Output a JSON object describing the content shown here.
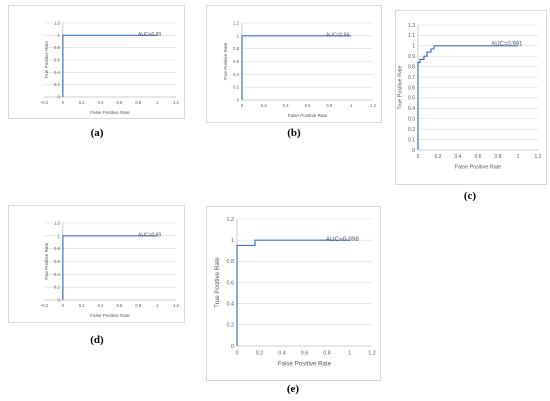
{
  "colors": {
    "line": "#4472c4",
    "grid": "#d9d9d9",
    "axis": "#bfbfbf",
    "text": "#595959"
  },
  "chart_data": [
    {
      "id": "a",
      "caption": "(a)",
      "type": "line",
      "xlabel": "False Positive Rate",
      "ylabel": "True Positive Rate",
      "xlim": [
        -0.2,
        1.2
      ],
      "ylim": [
        0,
        1.2
      ],
      "xticks": [
        -0.2,
        0,
        0.2,
        0.4,
        0.6,
        0.8,
        1,
        1.2
      ],
      "xtick_labels": [
        "−0.2",
        "0",
        "0.2",
        "0.4",
        "0.6",
        "0.8",
        "1",
        "1.2"
      ],
      "yticks": [
        0,
        0.2,
        0.4,
        0.6,
        0.8,
        1,
        1.2
      ],
      "ytick_labels": [
        "0",
        "0.2",
        "0.4",
        "0.6",
        "0.8",
        "1",
        "1.2"
      ],
      "grid": "horizontal",
      "annotation": "AUC=0.99",
      "series": [
        {
          "x": [
            0,
            0,
            1
          ],
          "y": [
            0,
            1,
            1
          ]
        }
      ]
    },
    {
      "id": "b",
      "caption": "(b)",
      "type": "line",
      "xlabel": "False Positive Rate",
      "ylabel": "True Positive Rate",
      "xlim": [
        0,
        1.2
      ],
      "ylim": [
        0,
        1.2
      ],
      "xticks": [
        0,
        0.2,
        0.4,
        0.6,
        0.8,
        1,
        1.2
      ],
      "xtick_labels": [
        "0",
        "0.2",
        "0.4",
        "0.6",
        "0.8",
        "1",
        "1.2"
      ],
      "yticks": [
        0,
        0.2,
        0.4,
        0.6,
        0.8,
        1,
        1.2
      ],
      "ytick_labels": [
        "0",
        "0.2",
        "0.4",
        "0.6",
        "0.8",
        "1",
        "1.2"
      ],
      "grid": "horizontal",
      "annotation": "AUC=0.99",
      "series": [
        {
          "x": [
            0,
            0,
            1
          ],
          "y": [
            0,
            1,
            1
          ]
        }
      ]
    },
    {
      "id": "c",
      "caption": "(c)",
      "type": "line",
      "xlabel": "False Positive Rate",
      "ylabel": "True Positive Rate",
      "xlim": [
        0,
        1.2
      ],
      "ylim": [
        0,
        1.2
      ],
      "xticks": [
        0,
        0.2,
        0.4,
        0.6,
        0.8,
        1,
        1.2
      ],
      "xtick_labels": [
        "0",
        "0.2",
        "0.4",
        "0.6",
        "0.8",
        "1",
        "1.2"
      ],
      "yticks": [
        0,
        0.1,
        0.2,
        0.3,
        0.4,
        0.5,
        0.6,
        0.7,
        0.8,
        0.9,
        1,
        1.1,
        1.2
      ],
      "ytick_labels": [
        "0",
        "0.1",
        "0.2",
        "0.3",
        "0.4",
        "0.5",
        "0.6",
        "0.7",
        "0.8",
        "0.9",
        "1",
        "1.1",
        "1.2"
      ],
      "grid": "horizontal",
      "annotation": "AUC=0.991",
      "series": [
        {
          "x": [
            0,
            0,
            0.02,
            0.02,
            0.06,
            0.06,
            0.09,
            0.09,
            0.13,
            0.13,
            0.16,
            0.16,
            1
          ],
          "y": [
            0,
            0.84,
            0.84,
            0.87,
            0.87,
            0.9,
            0.9,
            0.94,
            0.94,
            0.97,
            0.97,
            1,
            1
          ]
        }
      ]
    },
    {
      "id": "d",
      "caption": "(d)",
      "type": "line",
      "xlabel": "False Positive Rate",
      "ylabel": "True Positive Rate",
      "xlim": [
        -0.2,
        1.2
      ],
      "ylim": [
        0,
        1.2
      ],
      "xticks": [
        -0.2,
        0,
        0.2,
        0.4,
        0.6,
        0.8,
        1,
        1.2
      ],
      "xtick_labels": [
        "−0.2",
        "0",
        "0.2",
        "0.4",
        "0.6",
        "0.8",
        "1",
        "1.2"
      ],
      "yticks": [
        0,
        0.2,
        0.4,
        0.6,
        0.8,
        1,
        1.2
      ],
      "ytick_labels": [
        "0",
        "0.2",
        "0.4",
        "0.6",
        "0.8",
        "1",
        "1.2"
      ],
      "grid": "horizontal",
      "annotation": "AUC=0.99",
      "series": [
        {
          "x": [
            0,
            0,
            1
          ],
          "y": [
            0,
            1,
            1
          ]
        }
      ]
    },
    {
      "id": "e",
      "caption": "(e)",
      "type": "line",
      "xlabel": "False Positive Rate",
      "ylabel": "True Positive Rate",
      "xlim": [
        0,
        1.2
      ],
      "ylim": [
        0,
        1.2
      ],
      "xticks": [
        0,
        0.2,
        0.4,
        0.6,
        0.8,
        1,
        1.2
      ],
      "xtick_labels": [
        "0",
        "0.2",
        "0.4",
        "0.6",
        "0.8",
        "1",
        "1.2"
      ],
      "yticks": [
        0,
        0.2,
        0.4,
        0.6,
        0.8,
        1,
        1.2
      ],
      "ytick_labels": [
        "0",
        "0.2",
        "0.4",
        "0.6",
        "0.8",
        "1",
        "1.2"
      ],
      "grid": "horizontal",
      "annotation": "AUC=0.998",
      "series": [
        {
          "x": [
            0,
            0,
            0.16,
            0.16,
            1
          ],
          "y": [
            0,
            0.95,
            0.95,
            1,
            1
          ]
        }
      ]
    }
  ]
}
